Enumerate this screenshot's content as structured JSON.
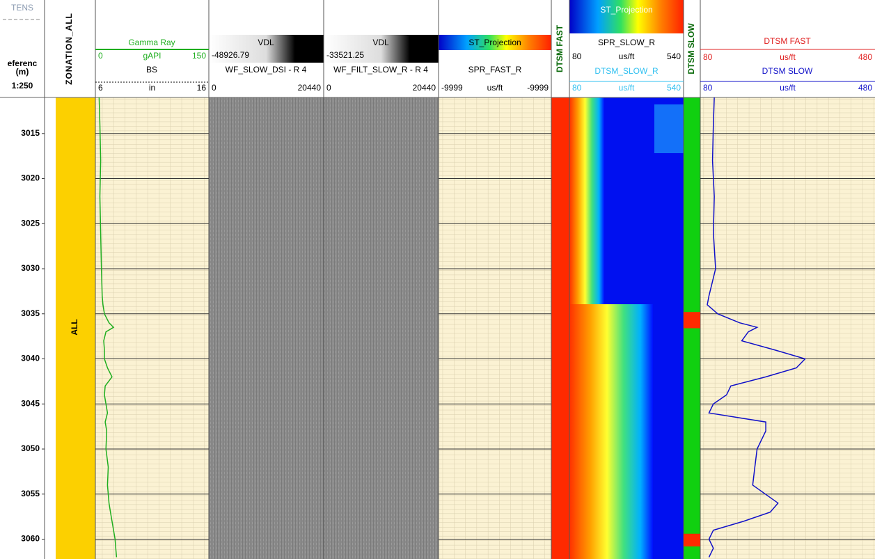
{
  "depth_track": {
    "title": "TENS",
    "reference": "eferenc",
    "unit": "(m)",
    "scale": "1:250",
    "range": [
      3011,
      3062.2
    ],
    "ticks": [
      3015,
      3020,
      3025,
      3030,
      3035,
      3040,
      3045,
      3050,
      3055,
      3060
    ]
  },
  "zonation": {
    "title": "ZONATION_ALL",
    "zone": "ALL"
  },
  "gamma_track": {
    "curve": {
      "name": "Gamma Ray",
      "color": "#1fae1f",
      "min": 0,
      "unit": "gAPI",
      "max": 150
    },
    "second": {
      "name": "BS",
      "min": 6,
      "unit": "in",
      "max": 16
    }
  },
  "vdl_slow": {
    "title": "VDL",
    "low": "-48926.79",
    "name": "WF_SLOW_DSI - R 4",
    "min": 0,
    "max": 20440
  },
  "vdl_filt": {
    "title": "VDL",
    "low": "-33521.25",
    "name": "WF_FILT_SLOW_R - R 4",
    "min": 0,
    "max": 20440
  },
  "fast_projection": {
    "title": "ST_Projection",
    "name": "SPR_FAST_R",
    "min": -9999,
    "unit": "us/ft",
    "max": -9999
  },
  "dtsm_fast_flag": {
    "title": "DTSM FAST"
  },
  "slow_projection": {
    "title": "ST_Projection",
    "name": "SPR_SLOW_R",
    "min": 80,
    "unit": "us/ft",
    "max": 540,
    "curve": {
      "name": "DTSM_SLOW_R",
      "min": 80,
      "unit": "us/ft",
      "max": 540
    }
  },
  "dtsm_slow_flag": {
    "title": "DTSM SLOW",
    "red_intervals": [
      [
        3034.8,
        3036.6
      ],
      [
        3059.4,
        3060.8
      ]
    ]
  },
  "dtsm_track": {
    "fast": {
      "name": "DTSM FAST",
      "color": "#e02020",
      "min": 80,
      "unit": "us/ft",
      "max": 480
    },
    "slow": {
      "name": "DTSM SLOW",
      "color": "#1010c8",
      "min": 80,
      "unit": "us/ft",
      "max": 480
    }
  },
  "depths": [
    3011,
    3014,
    3018,
    3022,
    3026,
    3030,
    3033,
    3034,
    3035,
    3036,
    3036.5,
    3037,
    3038,
    3039,
    3040,
    3041,
    3042,
    3043,
    3044,
    3045,
    3046,
    3047,
    3048,
    3050,
    3052,
    3054,
    3056,
    3057,
    3058,
    3059,
    3060,
    3061,
    3062
  ],
  "gamma_values": [
    5,
    6,
    7,
    6,
    7,
    8,
    9,
    10,
    12,
    18,
    24,
    14,
    11,
    12,
    12,
    16,
    22,
    13,
    12,
    14,
    16,
    13,
    15,
    14,
    17,
    16,
    18,
    20,
    22,
    24,
    26,
    27,
    28
  ],
  "dtsm_slow_values": [
    112,
    110,
    108,
    112,
    110,
    115,
    100,
    96,
    120,
    170,
    210,
    190,
    175,
    250,
    320,
    300,
    230,
    150,
    140,
    110,
    100,
    230,
    230,
    210,
    205,
    200,
    258,
    240,
    180,
    110,
    100,
    110,
    100
  ]
}
